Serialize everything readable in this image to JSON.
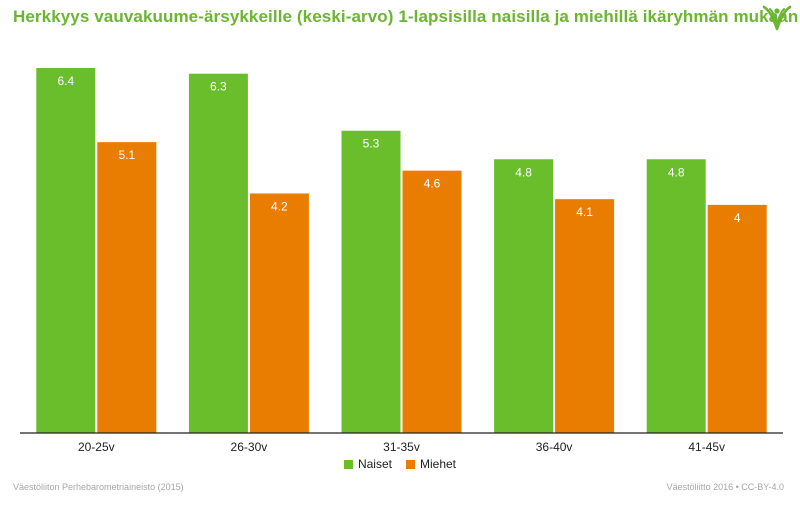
{
  "title": "Herkkyys vauvakuume-ärsykkeille (keski-arvo) 1-lapsisilla naisilla ja miehillä ikäryhmän mukaan",
  "logo_icon": "vaestoliitto-leaf-logo-icon",
  "colors": {
    "title": "#6cb533",
    "naiset": "#6abd2b",
    "miehet": "#e87d02",
    "axis": "#222222",
    "footer": "#a7a7a7"
  },
  "chart_data": {
    "type": "bar",
    "categories": [
      "20-25v",
      "26-30v",
      "31-35v",
      "36-40v",
      "41-45v"
    ],
    "series": [
      {
        "name": "Naiset",
        "values": [
          6.4,
          6.3,
          5.3,
          4.8,
          4.8
        ],
        "labels": [
          "6.4",
          "6.3",
          "5.3",
          "4.8",
          "4.8"
        ]
      },
      {
        "name": "Miehet",
        "values": [
          5.1,
          4.2,
          4.6,
          4.1,
          4.0
        ],
        "labels": [
          "5.1",
          "4.2",
          "4.6",
          "4.1",
          "4"
        ]
      }
    ],
    "ylim": [
      0,
      6.4
    ],
    "grid": false,
    "legend_position": "bottom"
  },
  "footer": {
    "source": "Väestöliiton Perhebarometriaineisto (2015)",
    "credit": "Väestöliitto 2016 • CC-BY-4.0"
  }
}
